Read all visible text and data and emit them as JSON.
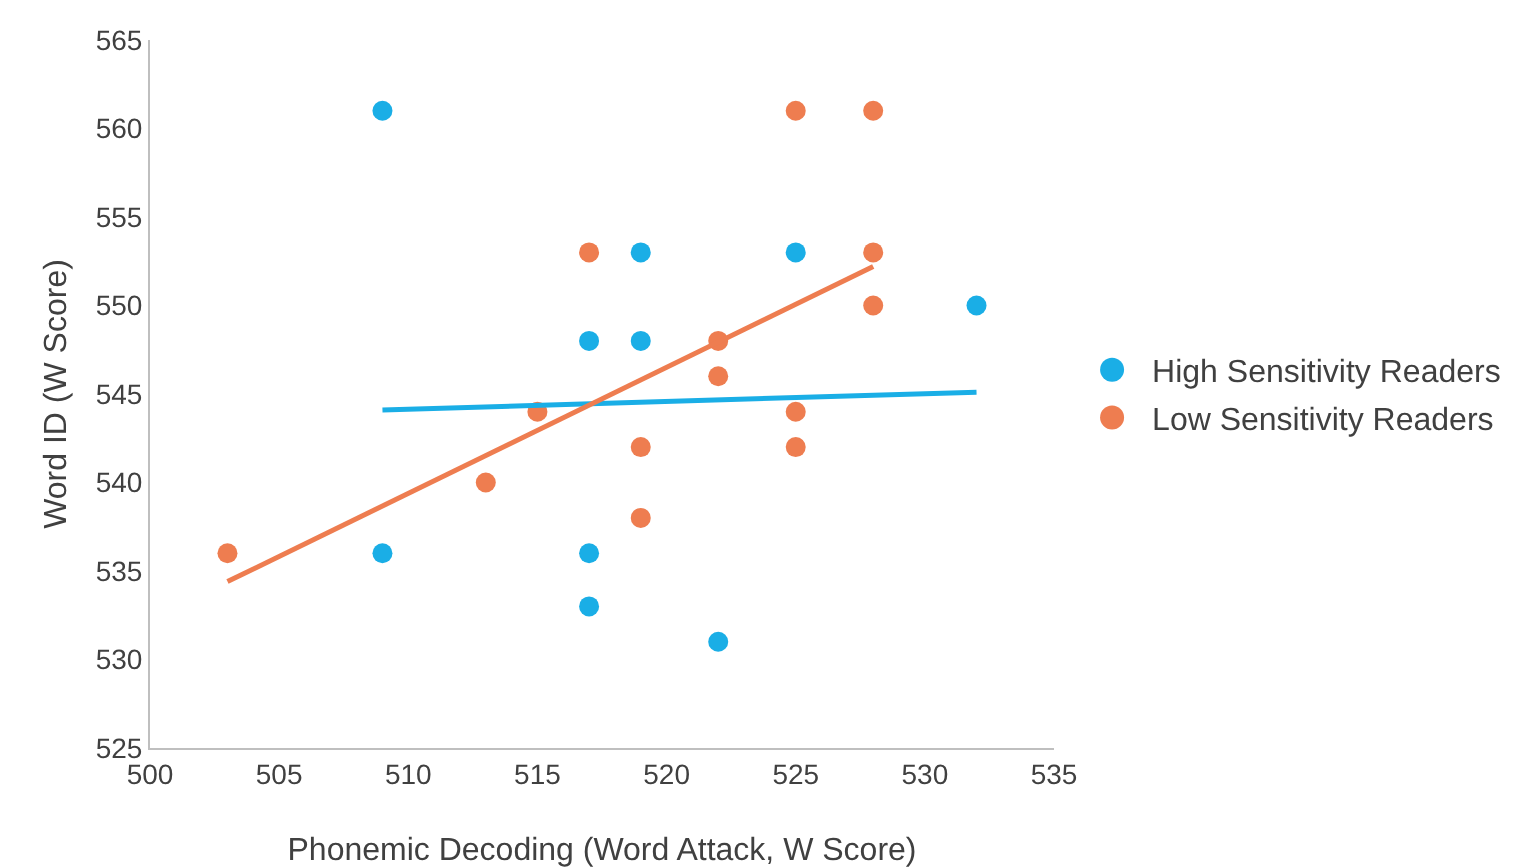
{
  "chart_data": {
    "type": "scatter",
    "xlabel": "Phonemic Decoding (Word Attack, W Score)",
    "ylabel": "Word ID (W Score)",
    "xlim": [
      500,
      535
    ],
    "xticks": [
      500,
      505,
      510,
      515,
      520,
      525,
      530,
      535
    ],
    "ylim": [
      525,
      565
    ],
    "yticks": [
      525,
      530,
      535,
      540,
      545,
      550,
      555,
      560,
      565
    ],
    "grid": false,
    "legend": "right",
    "marker": "circle",
    "series": [
      {
        "name": "High Sensitivity Readers",
        "color": "#1aaee6",
        "x": [
          509,
          509,
          517,
          517,
          517,
          519,
          519,
          522,
          525,
          532
        ],
        "values": [
          561,
          536,
          548,
          536,
          533,
          553,
          548,
          531,
          553,
          550
        ]
      },
      {
        "name": "Low Sensitivity Readers",
        "color": "#ee7d50",
        "x": [
          503,
          513,
          515,
          517,
          519,
          519,
          522,
          522,
          525,
          525,
          525,
          528,
          528,
          528
        ],
        "values": [
          536,
          540,
          544,
          553,
          542,
          538,
          548,
          546,
          544,
          542,
          561,
          561,
          553,
          550
        ]
      },
      {
        "type": "line",
        "color": "#1aaee6",
        "marker": "none",
        "line_style": "solid",
        "x": [
          509,
          532
        ],
        "values": [
          544.1,
          545.1
        ]
      },
      {
        "type": "line",
        "color": "#ee7d50",
        "marker": "none",
        "line_style": "solid",
        "x": [
          503,
          528
        ],
        "values": [
          534.4,
          552.2
        ]
      }
    ]
  }
}
